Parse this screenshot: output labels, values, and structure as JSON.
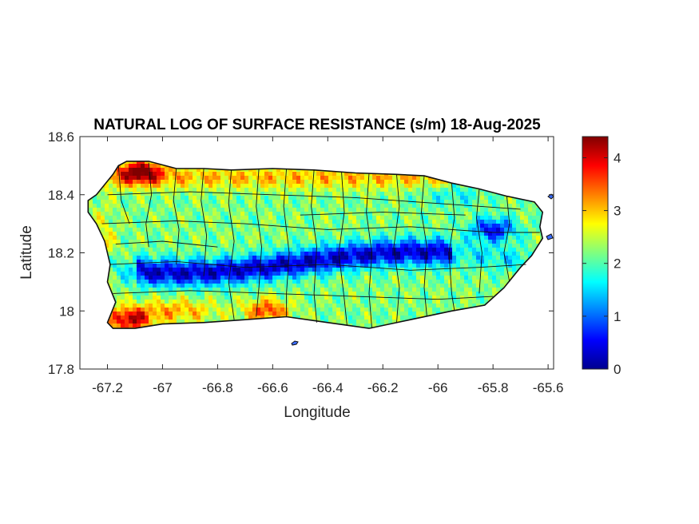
{
  "figure": {
    "title": "NATURAL LOG OF SURFACE RESISTANCE (s/m) 18-Aug-2025",
    "xlabel": "Longitude",
    "ylabel": "Latitude"
  },
  "chart_data": {
    "type": "heatmap",
    "title": "NATURAL LOG OF SURFACE RESISTANCE (s/m) 18-Aug-2025",
    "xlabel": "Longitude",
    "ylabel": "Latitude",
    "xlim": [
      -67.3,
      -65.58
    ],
    "ylim": [
      17.8,
      18.6
    ],
    "xticks": [
      -67.2,
      -67,
      -66.8,
      -66.6,
      -66.4,
      -66.2,
      -66,
      -65.8,
      -65.6
    ],
    "xtick_labels": [
      "-67.2",
      "-67",
      "-66.8",
      "-66.6",
      "-66.4",
      "-66.2",
      "-66",
      "-65.8",
      "-65.6"
    ],
    "yticks": [
      17.8,
      18,
      18.2,
      18.4,
      18.6
    ],
    "ytick_labels": [
      "17.8",
      "18",
      "18.2",
      "18.4",
      "18.6"
    ],
    "colorbar": {
      "colormap": "jet",
      "range": [
        0,
        4.4
      ],
      "ticks": [
        0,
        1,
        2,
        3,
        4
      ],
      "tick_labels": [
        "0",
        "1",
        "2",
        "3",
        "4"
      ]
    },
    "region": "Puerto Rico (municipal boundaries)",
    "field_features": [
      {
        "feature": "central mountain band",
        "lon": [
          -67.05,
          -65.95
        ],
        "lat": [
          18.08,
          18.22
        ],
        "value": 0.3
      },
      {
        "feature": "eastern high terrain",
        "lon": [
          -65.9,
          -65.72
        ],
        "lat": [
          18.24,
          18.32
        ],
        "value": 0.5
      },
      {
        "feature": "northwest coast",
        "lon": [
          -67.15,
          -67.0
        ],
        "lat": [
          18.44,
          18.52
        ],
        "value": 4.1
      },
      {
        "feature": "southwest coast",
        "lon": [
          -67.2,
          -67.05
        ],
        "lat": [
          17.94,
          18.0
        ],
        "value": 4.1
      },
      {
        "feature": "south coast",
        "lon": [
          -66.7,
          -66.55
        ],
        "lat": [
          17.98,
          18.04
        ],
        "value": 3.7
      },
      {
        "feature": "north coast",
        "lon": [
          -67.0,
          -66.0
        ],
        "lat": [
          18.42,
          18.5
        ],
        "value": 3.0
      }
    ]
  }
}
